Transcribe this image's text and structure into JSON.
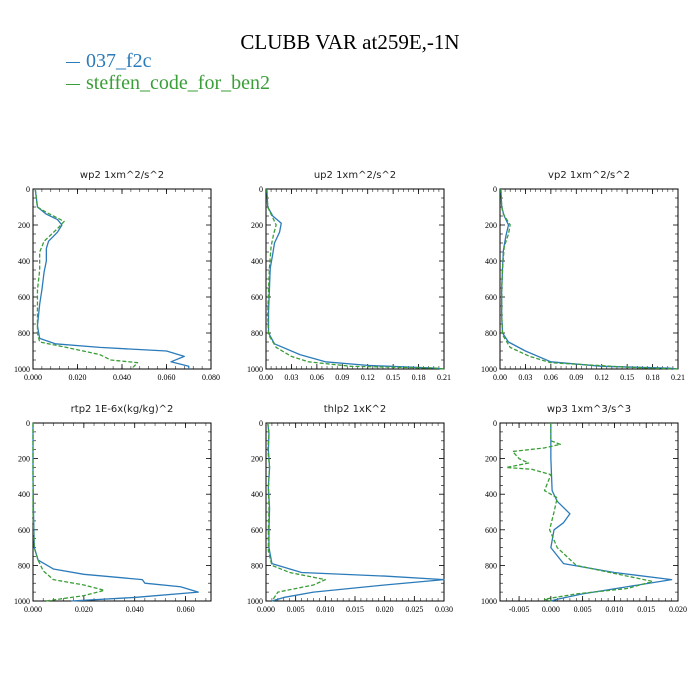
{
  "title": "CLUBB VAR at259E,-1N",
  "legend": [
    {
      "name": "037_f2c",
      "color": "#2b7bba"
    },
    {
      "name": "steffen_code_for_ben2",
      "color": "#3a9e38"
    }
  ],
  "chart_data": [
    {
      "type": "line",
      "title": "wp2",
      "units": "1xm^2/s^2",
      "xlim": [
        0,
        0.08
      ],
      "ylim": [
        0,
        1000
      ],
      "xticks": [
        "0.000",
        "0.020",
        "0.040",
        "0.060",
        "0.080"
      ],
      "yticks": [
        "0",
        "200",
        "400",
        "600",
        "800",
        "1000"
      ],
      "series": [
        {
          "name": "037_f2c",
          "points": [
            [
              0.001,
              0
            ],
            [
              0.002,
              100
            ],
            [
              0.006,
              140
            ],
            [
              0.011,
              170
            ],
            [
              0.013,
              200
            ],
            [
              0.011,
              240
            ],
            [
              0.007,
              290
            ],
            [
              0.006,
              330
            ],
            [
              0.006,
              400
            ],
            [
              0.005,
              460
            ],
            [
              0.004,
              560
            ],
            [
              0.003,
              640
            ],
            [
              0.002,
              760
            ],
            [
              0.003,
              830
            ],
            [
              0.01,
              860
            ],
            [
              0.03,
              880
            ],
            [
              0.06,
              900
            ],
            [
              0.068,
              930
            ],
            [
              0.062,
              960
            ],
            [
              0.07,
              985
            ],
            [
              0.07,
              1000
            ]
          ]
        },
        {
          "name": "steffen_code_for_ben2",
          "points": [
            [
              0.001,
              0
            ],
            [
              0.002,
              100
            ],
            [
              0.006,
              130
            ],
            [
              0.014,
              180
            ],
            [
              0.011,
              220
            ],
            [
              0.005,
              290
            ],
            [
              0.003,
              350
            ],
            [
              0.003,
              450
            ],
            [
              0.002,
              560
            ],
            [
              0.002,
              700
            ],
            [
              0.002,
              800
            ],
            [
              0.003,
              850
            ],
            [
              0.015,
              880
            ],
            [
              0.03,
              920
            ],
            [
              0.035,
              950
            ],
            [
              0.047,
              965
            ],
            [
              0.045,
              990
            ],
            [
              0.045,
              1000
            ]
          ]
        }
      ]
    },
    {
      "type": "line",
      "title": "up2",
      "units": "1xm^2/s^2",
      "xlim": [
        0,
        0.21
      ],
      "ylim": [
        0,
        1000
      ],
      "xticks": [
        "0.00",
        "0.03",
        "0.06",
        "0.09",
        "0.12",
        "0.15",
        "0.18",
        "0.21"
      ],
      "yticks": [
        "0",
        "200",
        "400",
        "600",
        "800",
        "1000"
      ],
      "series": [
        {
          "name": "037_f2c",
          "points": [
            [
              0.001,
              0
            ],
            [
              0.002,
              100
            ],
            [
              0.008,
              150
            ],
            [
              0.018,
              190
            ],
            [
              0.016,
              240
            ],
            [
              0.01,
              300
            ],
            [
              0.008,
              360
            ],
            [
              0.005,
              440
            ],
            [
              0.004,
              560
            ],
            [
              0.003,
              680
            ],
            [
              0.003,
              800
            ],
            [
              0.01,
              860
            ],
            [
              0.04,
              920
            ],
            [
              0.07,
              960
            ],
            [
              0.12,
              980
            ],
            [
              0.2,
              995
            ],
            [
              0.21,
              1000
            ]
          ]
        },
        {
          "name": "steffen_code_for_ben2",
          "points": [
            [
              0.001,
              0
            ],
            [
              0.002,
              100
            ],
            [
              0.006,
              140
            ],
            [
              0.012,
              200
            ],
            [
              0.009,
              250
            ],
            [
              0.006,
              320
            ],
            [
              0.004,
              440
            ],
            [
              0.003,
              560
            ],
            [
              0.002,
              700
            ],
            [
              0.003,
              810
            ],
            [
              0.012,
              880
            ],
            [
              0.03,
              930
            ],
            [
              0.05,
              960
            ],
            [
              0.1,
              985
            ],
            [
              0.2,
              995
            ],
            [
              0.21,
              1000
            ]
          ]
        }
      ]
    },
    {
      "type": "line",
      "title": "vp2",
      "units": "1xm^2/s^2",
      "xlim": [
        0,
        0.21
      ],
      "ylim": [
        0,
        1000
      ],
      "xticks": [
        "0.00",
        "0.03",
        "0.06",
        "0.09",
        "0.12",
        "0.15",
        "0.18",
        "0.21"
      ],
      "yticks": [
        "0",
        "200",
        "400",
        "600",
        "800",
        "1000"
      ],
      "series": [
        {
          "name": "037_f2c",
          "points": [
            [
              0.001,
              0
            ],
            [
              0.002,
              100
            ],
            [
              0.005,
              150
            ],
            [
              0.01,
              200
            ],
            [
              0.007,
              260
            ],
            [
              0.004,
              340
            ],
            [
              0.003,
              440
            ],
            [
              0.002,
              560
            ],
            [
              0.002,
              700
            ],
            [
              0.003,
              800
            ],
            [
              0.01,
              850
            ],
            [
              0.03,
              900
            ],
            [
              0.06,
              960
            ],
            [
              0.12,
              985
            ],
            [
              0.2,
              995
            ],
            [
              0.21,
              1000
            ]
          ]
        },
        {
          "name": "steffen_code_for_ben2",
          "points": [
            [
              0.001,
              0
            ],
            [
              0.002,
              100
            ],
            [
              0.004,
              140
            ],
            [
              0.012,
              200
            ],
            [
              0.01,
              250
            ],
            [
              0.005,
              320
            ],
            [
              0.003,
              440
            ],
            [
              0.002,
              560
            ],
            [
              0.002,
              700
            ],
            [
              0.003,
              810
            ],
            [
              0.012,
              880
            ],
            [
              0.035,
              930
            ],
            [
              0.06,
              965
            ],
            [
              0.15,
              990
            ],
            [
              0.21,
              1000
            ]
          ]
        }
      ]
    },
    {
      "type": "line",
      "title": "rtp2",
      "units": "1E-6x(kg/kg)^2",
      "xlim": [
        0,
        0.07
      ],
      "ylim": [
        0,
        1000
      ],
      "xticks": [
        "0.000",
        "0.020",
        "0.040",
        "0.060"
      ],
      "yticks": [
        "0",
        "200",
        "400",
        "600",
        "800",
        "1000"
      ],
      "series": [
        {
          "name": "037_f2c",
          "points": [
            [
              0,
              0
            ],
            [
              0,
              300
            ],
            [
              0.0002,
              500
            ],
            [
              0.0005,
              700
            ],
            [
              0.002,
              770
            ],
            [
              0.008,
              820
            ],
            [
              0.02,
              850
            ],
            [
              0.043,
              880
            ],
            [
              0.044,
              900
            ],
            [
              0.058,
              920
            ],
            [
              0.065,
              950
            ],
            [
              0.04,
              980
            ],
            [
              0.015,
              1000
            ]
          ]
        },
        {
          "name": "steffen_code_for_ben2",
          "points": [
            [
              0,
              0
            ],
            [
              0,
              500
            ],
            [
              0.0005,
              700
            ],
            [
              0.002,
              770
            ],
            [
              0.004,
              830
            ],
            [
              0.008,
              880
            ],
            [
              0.02,
              910
            ],
            [
              0.028,
              940
            ],
            [
              0.02,
              970
            ],
            [
              0.01,
              990
            ],
            [
              0.005,
              1000
            ]
          ]
        }
      ]
    },
    {
      "type": "line",
      "title": "thlp2",
      "units": "1xK^2",
      "xlim": [
        0,
        0.03
      ],
      "ylim": [
        0,
        1000
      ],
      "xticks": [
        "0.000",
        "0.005",
        "0.010",
        "0.015",
        "0.020",
        "0.025",
        "0.030"
      ],
      "yticks": [
        "0",
        "200",
        "400",
        "600",
        "800",
        "1000"
      ],
      "series": [
        {
          "name": "037_f2c",
          "points": [
            [
              0.0003,
              0
            ],
            [
              0.0005,
              60
            ],
            [
              0.0004,
              150
            ],
            [
              0.0006,
              250
            ],
            [
              0.0004,
              360
            ],
            [
              0.0006,
              480
            ],
            [
              0.0005,
              600
            ],
            [
              0.0005,
              700
            ],
            [
              0.001,
              790
            ],
            [
              0.006,
              840
            ],
            [
              0.02,
              860
            ],
            [
              0.03,
              880
            ],
            [
              0.02,
              910
            ],
            [
              0.008,
              950
            ],
            [
              0.003,
              980
            ],
            [
              0.001,
              1000
            ]
          ]
        },
        {
          "name": "steffen_code_for_ben2",
          "points": [
            [
              0.0003,
              0
            ],
            [
              0.0005,
              60
            ],
            [
              0.0003,
              150
            ],
            [
              0.0006,
              250
            ],
            [
              0.0004,
              360
            ],
            [
              0.0005,
              480
            ],
            [
              0.0004,
              600
            ],
            [
              0.0004,
              720
            ],
            [
              0.001,
              800
            ],
            [
              0.004,
              840
            ],
            [
              0.01,
              880
            ],
            [
              0.008,
              910
            ],
            [
              0.002,
              950
            ],
            [
              0.001,
              1000
            ]
          ]
        }
      ]
    },
    {
      "type": "line",
      "title": "wp3",
      "units": "1xm^3/s^3",
      "xlim": [
        -0.008,
        0.02
      ],
      "ylim": [
        0,
        1000
      ],
      "xticks": [
        "-0.005",
        "0.000",
        "0.005",
        "0.010",
        "0.015",
        "0.020"
      ],
      "yticks": [
        "0",
        "200",
        "400",
        "600",
        "800",
        "1000"
      ],
      "series": [
        {
          "name": "037_f2c",
          "points": [
            [
              0,
              0
            ],
            [
              0,
              200
            ],
            [
              0.0002,
              380
            ],
            [
              0.001,
              440
            ],
            [
              0.003,
              510
            ],
            [
              0.002,
              560
            ],
            [
              0.0005,
              600
            ],
            [
              0,
              700
            ],
            [
              0.002,
              790
            ],
            [
              0.01,
              840
            ],
            [
              0.019,
              880
            ],
            [
              0.012,
              920
            ],
            [
              0.005,
              960
            ],
            [
              0.001,
              990
            ],
            [
              0,
              1000
            ]
          ]
        },
        {
          "name": "steffen_code_for_ben2",
          "points": [
            [
              0,
              0
            ],
            [
              0,
              100
            ],
            [
              0.0015,
              120
            ],
            [
              -0.001,
              140
            ],
            [
              -0.006,
              160
            ],
            [
              -0.005,
              200
            ],
            [
              -0.0035,
              225
            ],
            [
              -0.007,
              250
            ],
            [
              -0.003,
              260
            ],
            [
              0,
              290
            ],
            [
              -0.001,
              380
            ],
            [
              0.001,
              420
            ],
            [
              0.0005,
              500
            ],
            [
              -0.0002,
              600
            ],
            [
              0.001,
              700
            ],
            [
              0.004,
              800
            ],
            [
              0.012,
              860
            ],
            [
              0.016,
              890
            ],
            [
              0.012,
              930
            ],
            [
              0.004,
              960
            ],
            [
              -0.001,
              990
            ],
            [
              0,
              1000
            ]
          ]
        }
      ]
    }
  ]
}
